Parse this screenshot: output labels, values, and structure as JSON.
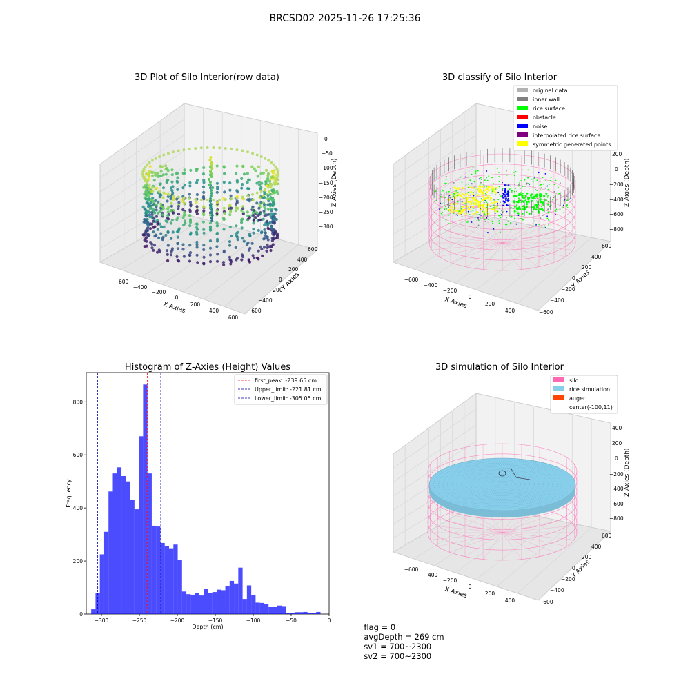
{
  "figure_title": "BRCSD02 2025-11-26 17:25:36",
  "panels": {
    "raw": {
      "title": "3D Plot of Silo Interior(row data)",
      "xlabel": "X Axies",
      "ylabel": "Y Axies",
      "zlabel": "Z Axies (Depth)",
      "x_ticks": [
        "−600",
        "−400",
        "−200",
        "0",
        "200",
        "400",
        "600"
      ],
      "y_ticks": [
        "600",
        "400",
        "200",
        "0",
        "−200",
        "−400",
        "−600"
      ],
      "z_ticks": [
        "0",
        "−50",
        "−100",
        "−150",
        "−200",
        "−250",
        "−300"
      ]
    },
    "classify": {
      "title": "3D classify of Silo Interior",
      "xlabel": "X Axies",
      "ylabel": "Y Axies",
      "zlabel": "Z Axies (Depth)",
      "x_ticks": [
        "−600",
        "−400",
        "−200",
        "0",
        "200",
        "400"
      ],
      "y_ticks": [
        "600",
        "400",
        "200",
        "0",
        "−200",
        "−400",
        "−600"
      ],
      "z_ticks": [
        "200",
        "0",
        "−200",
        "−400",
        "−600",
        "−800"
      ],
      "legend": [
        {
          "label": "original data",
          "color": "#b3b3b3"
        },
        {
          "label": "inner wall",
          "color": "#808080"
        },
        {
          "label": "rice surface",
          "color": "#00ff00"
        },
        {
          "label": "obstacle",
          "color": "#ff0000"
        },
        {
          "label": "noise",
          "color": "#0000ff"
        },
        {
          "label": "interpolated rice surface",
          "color": "#800080"
        },
        {
          "label": "symmetric generated points",
          "color": "#ffff00"
        }
      ]
    },
    "simulation": {
      "title": "3D simulation of Silo Interior",
      "xlabel": "X Axies",
      "ylabel": "Y Axies",
      "zlabel": "Z Axies (Depth)",
      "x_ticks": [
        "−600",
        "−400",
        "−200",
        "0",
        "200",
        "400"
      ],
      "y_ticks": [
        "600",
        "400",
        "200",
        "0",
        "−200",
        "−400",
        "−600"
      ],
      "z_ticks": [
        "400",
        "200",
        "0",
        "−200",
        "−400",
        "−600",
        "−800"
      ],
      "legend": [
        {
          "label": "silo",
          "color": "#ff69b4"
        },
        {
          "label": "rice simulation",
          "color": "#87ceeb"
        },
        {
          "label": "auger",
          "color": "#ff4500"
        },
        {
          "label": "center(-100,11)",
          "color": ""
        }
      ]
    }
  },
  "chart_data": {
    "type": "bar",
    "title": "Histogram of Z-Axies (Height) Values",
    "xlabel": "Depth (cm)",
    "ylabel": "Frequency",
    "xlim": [
      -320,
      0
    ],
    "ylim": [
      0,
      910
    ],
    "x_ticks": [
      -300,
      -250,
      -200,
      -150,
      -100,
      -50,
      0
    ],
    "x_tick_labels": [
      "−300",
      "−250",
      "−200",
      "−150",
      "−100",
      "−50",
      "0"
    ],
    "y_ticks": [
      0,
      200,
      400,
      600,
      800
    ],
    "y_tick_labels": [
      "0",
      "200",
      "400",
      "600",
      "800"
    ],
    "bin_width": 5.7,
    "bin_starts": [
      -313.5,
      -307.8,
      -302.1,
      -296.4,
      -290.7,
      -285.0,
      -279.3,
      -273.6,
      -267.9,
      -262.2,
      -256.5,
      -250.8,
      -245.1,
      -239.4,
      -233.7,
      -228.0,
      -222.3,
      -216.6,
      -210.9,
      -205.2,
      -199.5,
      -193.8,
      -188.1,
      -182.4,
      -176.7,
      -171.0,
      -165.3,
      -159.6,
      -153.9,
      -148.2,
      -142.5,
      -136.8,
      -131.1,
      -125.4,
      -119.7,
      -114.0,
      -108.3,
      -102.6,
      -96.9,
      -91.2,
      -85.5,
      -79.8,
      -74.1,
      -68.4,
      -62.7,
      -57.0,
      -51.3,
      -45.6,
      -39.9,
      -34.2,
      -28.5,
      -22.8,
      -17.1
    ],
    "counts": [
      18,
      80,
      225,
      310,
      462,
      530,
      553,
      520,
      500,
      430,
      395,
      670,
      865,
      530,
      333,
      330,
      268,
      255,
      248,
      262,
      205,
      85,
      75,
      73,
      78,
      70,
      95,
      78,
      83,
      92,
      90,
      105,
      125,
      115,
      175,
      57,
      108,
      72,
      43,
      42,
      38,
      27,
      28,
      32,
      30,
      5,
      5,
      7,
      7,
      8,
      5,
      5,
      8
    ],
    "color": "#0000ff",
    "lines": [
      {
        "name": "first_peak: -239.65 cm",
        "x": -239.65,
        "color": "#ff0000"
      },
      {
        "name": "Upper_limit: -221.81 cm",
        "x": -221.81,
        "color": "#0000aa"
      },
      {
        "name": "Lower_limit: -305.05 cm",
        "x": -305.05,
        "color": "#0000aa"
      }
    ],
    "legend_position": "top-right",
    "grid": false
  },
  "status": {
    "flag": "flag = 0",
    "avg_depth": "avgDepth = 269 cm",
    "sv1": "sv1 = 700~2300",
    "sv2": "sv2 = 700~2300"
  }
}
